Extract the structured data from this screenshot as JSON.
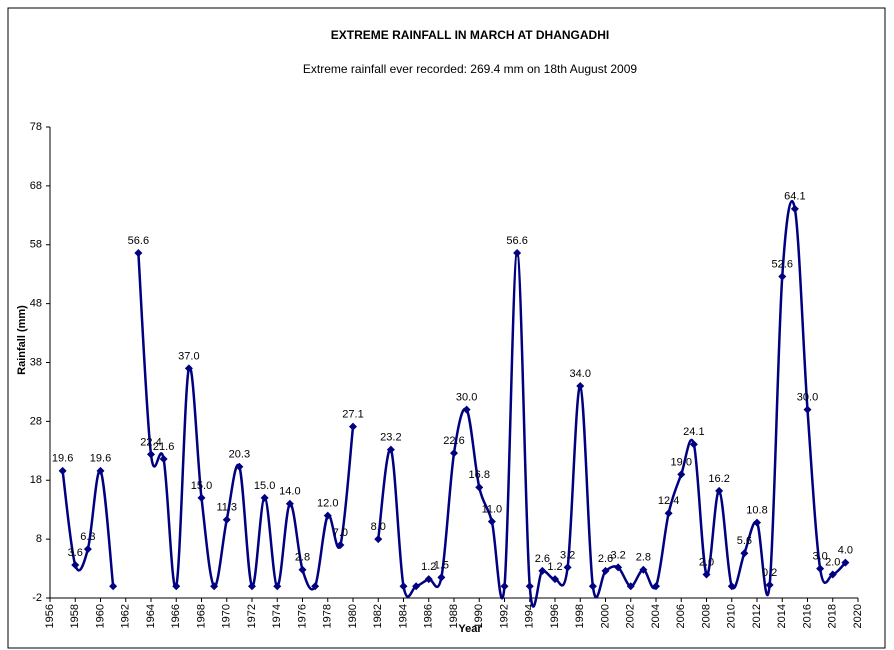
{
  "chart_data": {
    "type": "line",
    "title": "EXTREME  RAINFALL  IN MARCH AT DHANGADHI",
    "subtitle": "Extreme rainfall ever recorded: 269.4 mm on 18th August 2009",
    "x_label": "Year",
    "y_label": "Rainfall (mm)",
    "x": [
      1957,
      1958,
      1959,
      1960,
      1961,
      1962,
      1963,
      1964,
      1965,
      1966,
      1967,
      1968,
      1969,
      1970,
      1971,
      1972,
      1973,
      1974,
      1975,
      1976,
      1977,
      1978,
      1979,
      1980,
      1981,
      1982,
      1983,
      1984,
      1985,
      1986,
      1987,
      1988,
      1989,
      1990,
      1991,
      1992,
      1993,
      1994,
      1995,
      1996,
      1997,
      1998,
      1999,
      2000,
      2001,
      2002,
      2003,
      2004,
      2005,
      2006,
      2007,
      2008,
      2009,
      2010,
      2011,
      2012,
      2013,
      2014,
      2015,
      2016,
      2017,
      2018,
      2019
    ],
    "series": [
      {
        "name": "Rainfall",
        "color": "#000080",
        "values": [
          19.6,
          3.6,
          6.3,
          19.6,
          0,
          null,
          56.6,
          22.4,
          21.6,
          0,
          37.0,
          15.0,
          0,
          11.3,
          20.3,
          0,
          15.0,
          0,
          14.0,
          2.8,
          0,
          12.0,
          7.0,
          27.1,
          null,
          8.0,
          23.2,
          0,
          0,
          1.2,
          1.5,
          22.6,
          30.0,
          16.8,
          11.0,
          0,
          56.6,
          0,
          2.6,
          1.2,
          3.2,
          34.0,
          0,
          2.6,
          3.2,
          0,
          2.8,
          0,
          12.4,
          19.0,
          24.1,
          2.0,
          16.2,
          0,
          5.6,
          10.8,
          0.2,
          52.6,
          64.1,
          30.0,
          3.0,
          2.0,
          4.0
        ],
        "value_labels": [
          "19.6",
          "3.6",
          "6.3",
          "19.6",
          null,
          null,
          "56.6",
          "22.4",
          "21.6",
          null,
          "37.0",
          "15.0",
          null,
          "11.3",
          "20.3",
          null,
          "15.0",
          null,
          "14.0",
          "2.8",
          null,
          "12.0",
          "7.0",
          "27.1",
          null,
          "8.0",
          "23.2",
          null,
          null,
          "1.2",
          "1.5",
          "22.6",
          "30.0",
          "16.8",
          "11.0",
          null,
          "56.6",
          null,
          "2.6",
          "1.2",
          "3.2",
          "34.0",
          null,
          "2.6",
          "3.2",
          null,
          "2.8",
          null,
          "12.4",
          "19.0",
          "24.1",
          "2.0",
          "16.2",
          null,
          "5.6",
          "10.8",
          "0.2",
          "52.6",
          "64.1",
          "30.0",
          "3.0",
          "2.0",
          "4.0"
        ]
      }
    ],
    "xlim": [
      1956,
      2020
    ],
    "xticks": [
      1956,
      1958,
      1960,
      1962,
      1964,
      1966,
      1968,
      1970,
      1972,
      1974,
      1976,
      1978,
      1980,
      1982,
      1984,
      1986,
      1988,
      1990,
      1992,
      1994,
      1996,
      1998,
      2000,
      2002,
      2004,
      2006,
      2008,
      2010,
      2012,
      2014,
      2016,
      2018,
      2020
    ],
    "ylim": [
      -2,
      78
    ],
    "yticks": [
      -2,
      8,
      18,
      28,
      38,
      48,
      58,
      68,
      78
    ],
    "grid": false
  }
}
